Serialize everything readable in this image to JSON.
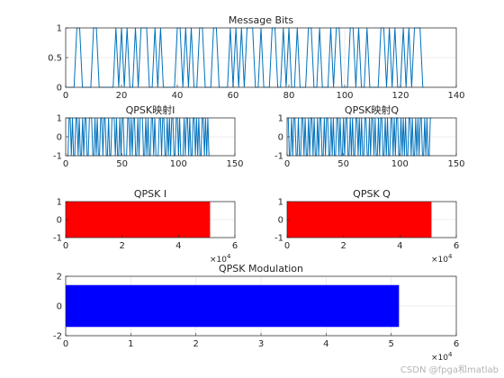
{
  "watermark": "CSDN @fpga和matlab",
  "chart_data": [
    {
      "id": "message-bits",
      "type": "line",
      "title": "Message Bits",
      "xlim": [
        0,
        140
      ],
      "ylim": [
        0,
        1
      ],
      "xticks": [
        0,
        20,
        40,
        60,
        80,
        100,
        120,
        140
      ],
      "yticks": [
        0,
        0.5,
        1
      ],
      "grid": true,
      "color": "#0072bd",
      "x_exponent": "",
      "series": [
        {
          "x_start": 1,
          "x_step": 1,
          "values": [
            0,
            0,
            0,
            1,
            1,
            0,
            0,
            0,
            0,
            1,
            1,
            0,
            0,
            0,
            0,
            0,
            0,
            1,
            0,
            1,
            0,
            1,
            0,
            0,
            1,
            0,
            1,
            1,
            1,
            0,
            0,
            1,
            0,
            1,
            0,
            0,
            0,
            0,
            0,
            1,
            1,
            0,
            1,
            0,
            1,
            0,
            0,
            1,
            1,
            0,
            0,
            0,
            1,
            1,
            0,
            0,
            0,
            0,
            1,
            0,
            1,
            0,
            1,
            0,
            1,
            1,
            1,
            0,
            0,
            1,
            0,
            0,
            0,
            1,
            1,
            0,
            0,
            1,
            0,
            1,
            0,
            0,
            1,
            0,
            0,
            0,
            1,
            1,
            0,
            0,
            1,
            0,
            0,
            0,
            1,
            0,
            1,
            1,
            0,
            0,
            0,
            1,
            1,
            0,
            1,
            0,
            0,
            1,
            0,
            0,
            0,
            0,
            1,
            1,
            0,
            1,
            0,
            1,
            0,
            0,
            1,
            0,
            1,
            0,
            1,
            1,
            1,
            0
          ]
        }
      ]
    },
    {
      "id": "qpsk-i-map",
      "type": "line",
      "title": "QPSK映射I",
      "xlim": [
        0,
        150
      ],
      "ylim": [
        -1,
        1
      ],
      "xticks": [
        0,
        50,
        100,
        150
      ],
      "yticks": [
        -1,
        0,
        1
      ],
      "grid": true,
      "color": "#0072bd",
      "x_exponent": "",
      "series": [
        {
          "x_start": 1,
          "x_step": 1,
          "values": [
            -1,
            -1,
            1,
            1,
            -1,
            1,
            -1,
            -1,
            1,
            1,
            -1,
            1,
            -1,
            -1,
            1,
            -1,
            1,
            1,
            -1,
            -1,
            1,
            1,
            1,
            -1,
            -1,
            1,
            -1,
            1,
            -1,
            -1,
            1,
            1,
            -1,
            1,
            1,
            -1,
            -1,
            1,
            -1,
            -1,
            1,
            1,
            1,
            -1,
            1,
            -1,
            -1,
            1,
            -1,
            1,
            1,
            -1,
            -1,
            -1,
            1,
            1,
            -1,
            1,
            -1,
            1,
            1,
            -1,
            -1,
            1,
            -1,
            1,
            1,
            1,
            -1,
            -1,
            1,
            -1,
            1,
            -1,
            -1,
            1,
            1,
            -1,
            1,
            -1,
            -1,
            -1,
            1,
            1,
            -1,
            1,
            1,
            -1,
            -1,
            1,
            -1,
            1,
            -1,
            1,
            1,
            -1,
            -1,
            1,
            1,
            -1,
            1,
            -1,
            -1,
            -1,
            1,
            -1,
            1,
            1,
            -1,
            1,
            -1,
            -1,
            1,
            1,
            -1,
            1,
            -1,
            1,
            -1,
            -1,
            1,
            1,
            -1,
            1,
            -1,
            1,
            -1,
            -1
          ]
        }
      ]
    },
    {
      "id": "qpsk-q-map",
      "type": "line",
      "title": "QPSK映射Q",
      "xlim": [
        0,
        150
      ],
      "ylim": [
        -1,
        1
      ],
      "xticks": [
        0,
        50,
        100,
        150
      ],
      "yticks": [
        -1,
        0,
        1
      ],
      "grid": true,
      "color": "#0072bd",
      "x_exponent": "",
      "series": [
        {
          "x_start": 1,
          "x_step": 1,
          "values": [
            1,
            -1,
            -1,
            1,
            -1,
            1,
            1,
            -1,
            -1,
            1,
            -1,
            -1,
            1,
            1,
            -1,
            1,
            -1,
            -1,
            1,
            -1,
            1,
            1,
            -1,
            1,
            -1,
            -1,
            1,
            -1,
            1,
            1,
            -1,
            -1,
            1,
            -1,
            1,
            1,
            -1,
            -1,
            1,
            -1,
            1,
            -1,
            -1,
            1,
            1,
            -1,
            1,
            -1,
            -1,
            1,
            -1,
            1,
            1,
            -1,
            -1,
            1,
            -1,
            1,
            -1,
            -1,
            1,
            1,
            -1,
            1,
            -1,
            1,
            -1,
            -1,
            1,
            1,
            -1,
            -1,
            1,
            -1,
            1,
            1,
            -1,
            1,
            -1,
            -1,
            1,
            -1,
            1,
            1,
            -1,
            -1,
            1,
            -1,
            1,
            -1,
            -1,
            1,
            1,
            -1,
            1,
            -1,
            1,
            1,
            -1,
            -1,
            1,
            -1,
            1,
            -1,
            1,
            -1,
            -1,
            1,
            1,
            -1,
            1,
            -1,
            -1,
            1,
            -1,
            1,
            -1,
            1,
            1,
            -1,
            -1,
            1,
            -1,
            1,
            -1,
            -1,
            1,
            1
          ]
        }
      ]
    },
    {
      "id": "qpsk-i",
      "type": "area",
      "title": "QPSK I",
      "xlim": [
        0,
        60000
      ],
      "ylim": [
        -1,
        1
      ],
      "xticks": [
        0,
        20000,
        40000,
        60000
      ],
      "xtick_labels": [
        "0",
        "2",
        "4",
        "6"
      ],
      "yticks": [
        -1,
        0,
        1
      ],
      "grid": true,
      "color": "#ff0000",
      "x_exponent": "10",
      "x_exponent_power": "4",
      "series": [
        {
          "x_range": [
            0,
            51200
          ],
          "y_range": [
            -1,
            1
          ]
        }
      ]
    },
    {
      "id": "qpsk-q",
      "type": "area",
      "title": "QPSK Q",
      "xlim": [
        0,
        60000
      ],
      "ylim": [
        -1,
        1
      ],
      "xticks": [
        0,
        20000,
        40000,
        60000
      ],
      "xtick_labels": [
        "0",
        "2",
        "4",
        "6"
      ],
      "yticks": [
        -1,
        0,
        1
      ],
      "grid": true,
      "color": "#ff0000",
      "x_exponent": "10",
      "x_exponent_power": "4",
      "series": [
        {
          "x_range": [
            0,
            51200
          ],
          "y_range": [
            -1,
            1
          ]
        }
      ]
    },
    {
      "id": "qpsk-modulation",
      "type": "area",
      "title": "QPSK Modulation",
      "xlim": [
        0,
        60000
      ],
      "ylim": [
        -2,
        2
      ],
      "xticks": [
        0,
        10000,
        20000,
        30000,
        40000,
        50000,
        60000
      ],
      "xtick_labels": [
        "0",
        "1",
        "2",
        "3",
        "4",
        "5",
        "6"
      ],
      "yticks": [
        -2,
        0,
        2
      ],
      "grid": true,
      "color": "#0000ff",
      "x_exponent": "10",
      "x_exponent_power": "4",
      "series": [
        {
          "x_range": [
            0,
            51200
          ],
          "y_range": [
            -1.41,
            1.41
          ]
        }
      ]
    }
  ]
}
